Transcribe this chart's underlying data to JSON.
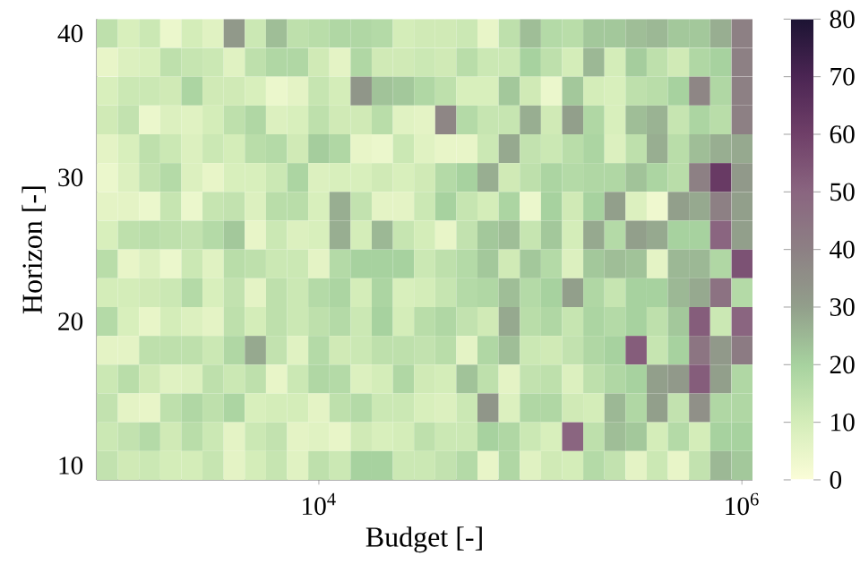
{
  "chart_data": {
    "type": "heatmap",
    "xlabel": "Budget [-]",
    "ylabel": "Horizon [-]",
    "categories": [
      null,
      null,
      null,
      null,
      null,
      null,
      null,
      null,
      null,
      null,
      "10$^{4}$",
      null,
      null,
      null,
      null,
      null,
      null,
      null,
      null,
      null,
      null,
      null,
      null,
      null,
      null,
      null,
      null,
      null,
      null,
      null,
      "10$^{6}$"
    ],
    "y_categories": [
      "40",
      null,
      null,
      null,
      null,
      "30",
      null,
      null,
      null,
      null,
      "20",
      null,
      null,
      null,
      null,
      "10"
    ],
    "clim": [
      0,
      80
    ],
    "cticks": [
      0,
      10,
      20,
      30,
      40,
      50,
      60,
      70,
      80
    ],
    "cells": [
      [
        15,
        9,
        12,
        4,
        10,
        7,
        32,
        12,
        24,
        15,
        16,
        18,
        18,
        17,
        10,
        11,
        11,
        12,
        5,
        15,
        24,
        17,
        16,
        22,
        22,
        24,
        25,
        22,
        22,
        27,
        40
      ],
      [
        5,
        8,
        9,
        15,
        13,
        12,
        7,
        15,
        18,
        18,
        11,
        6,
        18,
        11,
        11,
        12,
        11,
        16,
        12,
        12,
        20,
        15,
        10,
        25,
        10,
        21,
        15,
        11,
        18,
        20,
        40
      ],
      [
        9,
        12,
        12,
        11,
        19,
        11,
        11,
        9,
        4,
        6,
        13,
        10,
        33,
        23,
        22,
        18,
        15,
        9,
        9,
        22,
        11,
        4,
        22,
        10,
        9,
        15,
        16,
        20,
        38,
        18,
        40
      ],
      [
        11,
        14,
        4,
        8,
        7,
        10,
        15,
        18,
        8,
        9,
        15,
        11,
        11,
        16,
        7,
        6,
        38,
        17,
        13,
        13,
        27,
        11,
        30,
        18,
        9,
        24,
        26,
        13,
        19,
        16,
        40
      ],
      [
        6,
        9,
        15,
        12,
        8,
        12,
        10,
        16,
        17,
        11,
        21,
        18,
        5,
        4,
        12,
        7,
        5,
        5,
        12,
        28,
        14,
        12,
        16,
        19,
        8,
        15,
        27,
        16,
        24,
        27,
        28
      ],
      [
        4,
        8,
        14,
        17,
        8,
        5,
        9,
        9,
        12,
        19,
        8,
        9,
        9,
        11,
        9,
        11,
        17,
        20,
        27,
        11,
        15,
        19,
        17,
        18,
        18,
        23,
        19,
        16,
        40,
        62,
        32
      ],
      [
        6,
        6,
        4,
        13,
        4,
        13,
        14,
        8,
        16,
        16,
        9,
        27,
        14,
        6,
        6,
        12,
        20,
        13,
        10,
        19,
        4,
        20,
        11,
        20,
        30,
        8,
        3,
        30,
        28,
        40,
        30
      ],
      [
        9,
        15,
        16,
        15,
        14,
        17,
        22,
        5,
        12,
        8,
        9,
        27,
        10,
        25,
        13,
        10,
        5,
        14,
        22,
        24,
        13,
        22,
        10,
        28,
        17,
        30,
        28,
        20,
        20,
        50,
        30
      ],
      [
        16,
        5,
        8,
        4,
        12,
        7,
        16,
        15,
        12,
        12,
        6,
        17,
        20,
        20,
        20,
        12,
        15,
        17,
        22,
        11,
        22,
        17,
        8,
        22,
        24,
        23,
        6,
        25,
        25,
        18,
        55
      ],
      [
        10,
        10,
        11,
        12,
        17,
        9,
        14,
        6,
        15,
        12,
        17,
        19,
        10,
        19,
        9,
        10,
        13,
        17,
        18,
        24,
        17,
        20,
        30,
        18,
        13,
        20,
        20,
        25,
        28,
        45,
        17
      ],
      [
        17,
        9,
        5,
        10,
        8,
        6,
        15,
        10,
        15,
        12,
        15,
        17,
        12,
        20,
        10,
        16,
        18,
        14,
        11,
        28,
        16,
        18,
        13,
        19,
        17,
        20,
        15,
        22,
        52,
        12,
        50
      ],
      [
        6,
        6,
        15,
        15,
        15,
        12,
        18,
        28,
        14,
        7,
        17,
        11,
        12,
        15,
        15,
        14,
        16,
        6,
        18,
        24,
        12,
        11,
        14,
        18,
        20,
        52,
        13,
        20,
        44,
        32,
        42
      ],
      [
        12,
        16,
        11,
        7,
        8,
        15,
        12,
        15,
        5,
        12,
        18,
        17,
        8,
        10,
        18,
        11,
        10,
        23,
        15,
        6,
        14,
        15,
        8,
        15,
        18,
        20,
        30,
        32,
        52,
        30,
        18
      ],
      [
        14,
        6,
        5,
        15,
        18,
        15,
        19,
        9,
        10,
        10,
        6,
        15,
        17,
        12,
        12,
        9,
        8,
        12,
        33,
        8,
        18,
        18,
        11,
        10,
        25,
        18,
        30,
        14,
        35,
        18,
        18
      ],
      [
        12,
        14,
        17,
        11,
        16,
        12,
        6,
        12,
        14,
        6,
        7,
        5,
        11,
        9,
        10,
        15,
        12,
        12,
        20,
        18,
        12,
        9,
        50,
        15,
        24,
        22,
        10,
        17,
        10,
        20,
        20
      ],
      [
        14,
        11,
        12,
        10,
        10,
        13,
        6,
        10,
        13,
        7,
        15,
        12,
        20,
        20,
        12,
        12,
        14,
        17,
        5,
        18,
        7,
        11,
        10,
        17,
        14,
        6,
        12,
        5,
        14,
        25,
        22
      ]
    ]
  }
}
